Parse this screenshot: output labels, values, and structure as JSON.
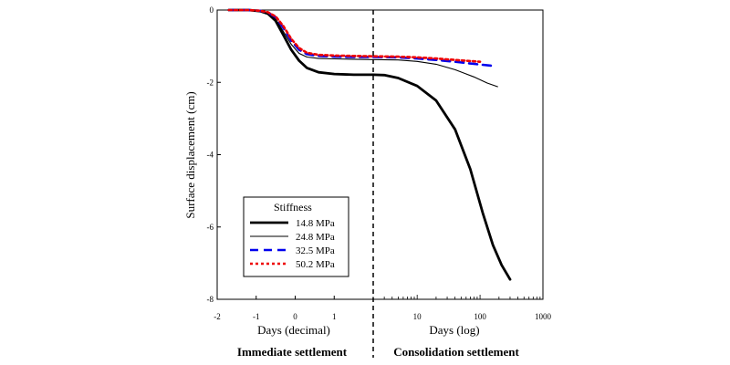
{
  "chart_data": {
    "type": "line",
    "title": "",
    "ylabel": "Surface displacement (cm)",
    "xlabel_left": "Days (decimal)",
    "xlabel_right": "Days (log)",
    "section_left": "Immediate settlement",
    "section_right": "Consolidation settlement",
    "ylim": [
      -8,
      0
    ],
    "y_ticks": [
      "0",
      "-2",
      "-4",
      "-6",
      "-8"
    ],
    "x_left_range": [
      -2,
      2
    ],
    "x_left_ticks": [
      "-2",
      "-1",
      "0",
      "1"
    ],
    "x_right_range": [
      2,
      1000
    ],
    "x_right_scale": "log",
    "x_right_ticks": [
      "10",
      "100",
      "1000"
    ],
    "divider_at_day": 2,
    "legend": {
      "title": "Stiffness",
      "placement": "bottom-left"
    },
    "series": [
      {
        "name": "14.8 MPa",
        "color": "#000000",
        "style": "solid-thick",
        "left": [
          [
            -1.7,
            0
          ],
          [
            -1.2,
            0
          ],
          [
            -0.9,
            -0.03
          ],
          [
            -0.7,
            -0.1
          ],
          [
            -0.5,
            -0.3
          ],
          [
            -0.3,
            -0.7
          ],
          [
            -0.1,
            -1.1
          ],
          [
            0.1,
            -1.4
          ],
          [
            0.3,
            -1.6
          ],
          [
            0.6,
            -1.72
          ],
          [
            1.0,
            -1.77
          ],
          [
            1.5,
            -1.79
          ],
          [
            2.0,
            -1.79
          ]
        ],
        "right": [
          [
            2,
            -1.79
          ],
          [
            3,
            -1.8
          ],
          [
            5,
            -1.88
          ],
          [
            10,
            -2.1
          ],
          [
            20,
            -2.5
          ],
          [
            40,
            -3.3
          ],
          [
            70,
            -4.4
          ],
          [
            110,
            -5.6
          ],
          [
            160,
            -6.5
          ],
          [
            220,
            -7.05
          ],
          [
            300,
            -7.45
          ]
        ]
      },
      {
        "name": "24.8 MPa",
        "color": "#000000",
        "style": "solid-thin",
        "left": [
          [
            -1.7,
            0
          ],
          [
            -1.2,
            0
          ],
          [
            -0.9,
            -0.02
          ],
          [
            -0.7,
            -0.08
          ],
          [
            -0.5,
            -0.25
          ],
          [
            -0.3,
            -0.6
          ],
          [
            -0.1,
            -0.95
          ],
          [
            0.1,
            -1.2
          ],
          [
            0.3,
            -1.3
          ],
          [
            0.6,
            -1.34
          ],
          [
            1.0,
            -1.35
          ],
          [
            1.5,
            -1.36
          ],
          [
            2.0,
            -1.37
          ]
        ],
        "right": [
          [
            2,
            -1.37
          ],
          [
            5,
            -1.38
          ],
          [
            10,
            -1.42
          ],
          [
            20,
            -1.5
          ],
          [
            40,
            -1.65
          ],
          [
            80,
            -1.85
          ],
          [
            130,
            -2.02
          ],
          [
            190,
            -2.12
          ]
        ]
      },
      {
        "name": "32.5 MPa",
        "color": "#0000ee",
        "style": "dashed",
        "left": [
          [
            -1.7,
            0
          ],
          [
            -1.2,
            0
          ],
          [
            -0.9,
            -0.02
          ],
          [
            -0.7,
            -0.07
          ],
          [
            -0.5,
            -0.2
          ],
          [
            -0.3,
            -0.5
          ],
          [
            -0.1,
            -0.85
          ],
          [
            0.1,
            -1.1
          ],
          [
            0.3,
            -1.22
          ],
          [
            0.6,
            -1.27
          ],
          [
            1.0,
            -1.29
          ],
          [
            1.5,
            -1.3
          ],
          [
            2.0,
            -1.3
          ]
        ],
        "right": [
          [
            2,
            -1.3
          ],
          [
            5,
            -1.31
          ],
          [
            10,
            -1.34
          ],
          [
            20,
            -1.38
          ],
          [
            40,
            -1.43
          ],
          [
            80,
            -1.49
          ],
          [
            150,
            -1.54
          ]
        ]
      },
      {
        "name": "50.2 MPa",
        "color": "#ee0000",
        "style": "dotted",
        "left": [
          [
            -1.7,
            0
          ],
          [
            -1.2,
            0
          ],
          [
            -0.9,
            -0.02
          ],
          [
            -0.7,
            -0.06
          ],
          [
            -0.5,
            -0.18
          ],
          [
            -0.3,
            -0.45
          ],
          [
            -0.1,
            -0.8
          ],
          [
            0.1,
            -1.05
          ],
          [
            0.3,
            -1.18
          ],
          [
            0.6,
            -1.24
          ],
          [
            1.0,
            -1.26
          ],
          [
            1.5,
            -1.27
          ],
          [
            2.0,
            -1.28
          ]
        ],
        "right": [
          [
            2,
            -1.28
          ],
          [
            5,
            -1.29
          ],
          [
            10,
            -1.31
          ],
          [
            20,
            -1.34
          ],
          [
            40,
            -1.38
          ],
          [
            70,
            -1.41
          ],
          [
            100,
            -1.43
          ]
        ]
      }
    ]
  }
}
